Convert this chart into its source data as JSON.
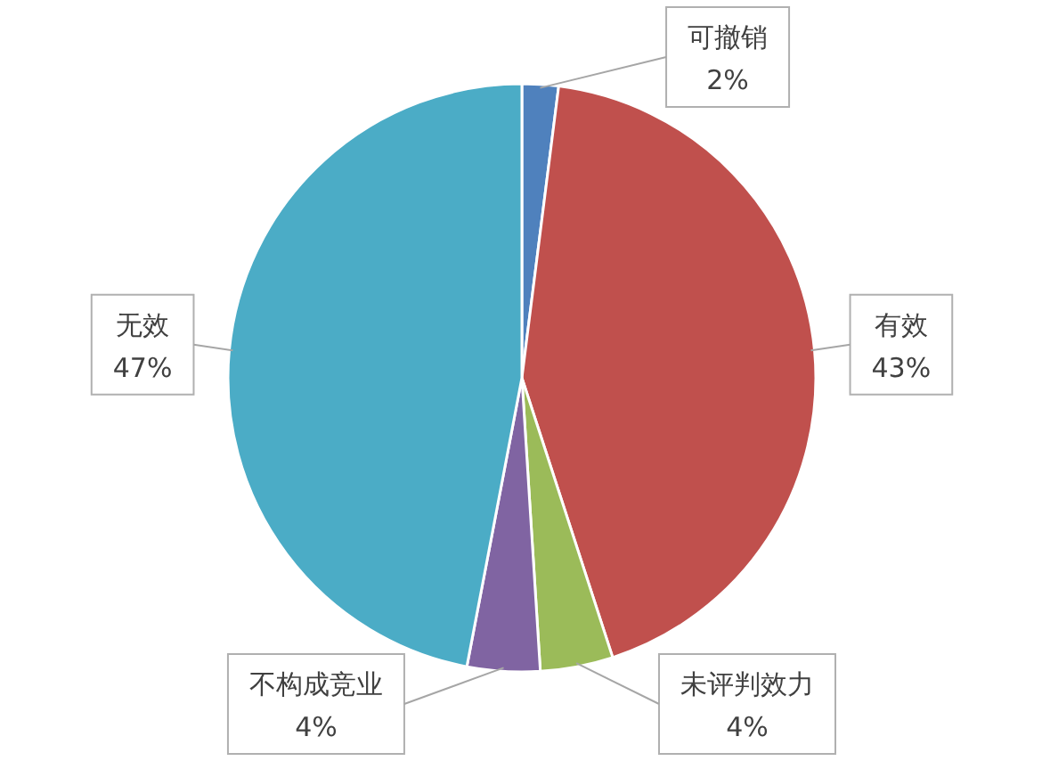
{
  "chart_data": {
    "type": "pie",
    "categories": [
      "可撤销",
      "有效",
      "未评判效力",
      "不构成竞业",
      "无效"
    ],
    "values": [
      2,
      43,
      4,
      4,
      47
    ],
    "value_labels": [
      "2%",
      "43%",
      "4%",
      "4%",
      "47%"
    ],
    "colors": [
      "#4f81bd",
      "#c0504d",
      "#9bbb59",
      "#8064a2",
      "#4bacc6"
    ]
  }
}
